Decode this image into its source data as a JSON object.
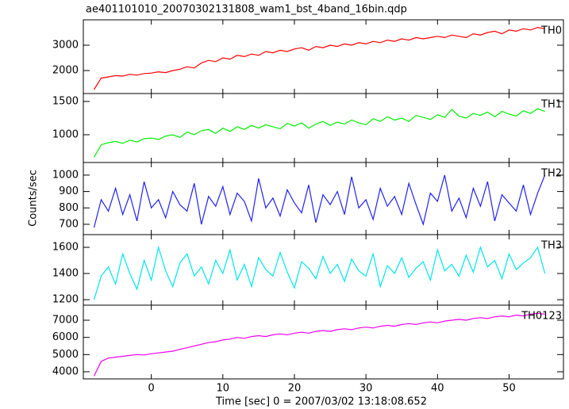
{
  "chart_data": {
    "type": "line",
    "title": "ae401101010_20070302131808_wam1_bst_4band_16bin.qdp",
    "xlabel": "Time [sec] 0 = 2007/03/02 13:18:08.652",
    "ylabel": "Counts/sec",
    "xlim": [
      -9.5,
      57.6
    ],
    "xticks": [
      0,
      10,
      20,
      30,
      40,
      50
    ],
    "x": [
      -8,
      -7,
      -6,
      -5,
      -4,
      -3,
      -2,
      -1,
      0,
      1,
      2,
      3,
      4,
      5,
      6,
      7,
      8,
      9,
      10,
      11,
      12,
      13,
      14,
      15,
      16,
      17,
      18,
      19,
      20,
      21,
      22,
      23,
      24,
      25,
      26,
      27,
      28,
      29,
      30,
      31,
      32,
      33,
      34,
      35,
      36,
      37,
      38,
      39,
      40,
      41,
      42,
      43,
      44,
      45,
      46,
      47,
      48,
      49,
      50,
      51,
      52,
      53,
      54,
      55
    ],
    "series": [
      {
        "name": "TH0",
        "color": "#ff0000",
        "ylim": [
          1094,
          4000
        ],
        "yticks": [
          2000,
          3000
        ],
        "values": [
          1250,
          1700,
          1750,
          1800,
          1780,
          1850,
          1820,
          1880,
          1900,
          1950,
          1920,
          2000,
          2050,
          2150,
          2100,
          2300,
          2400,
          2350,
          2500,
          2450,
          2600,
          2550,
          2650,
          2600,
          2750,
          2700,
          2800,
          2750,
          2850,
          2900,
          2800,
          2950,
          2900,
          3000,
          2950,
          3050,
          3000,
          3100,
          3050,
          3150,
          3100,
          3200,
          3150,
          3250,
          3200,
          3300,
          3250,
          3300,
          3350,
          3300,
          3400,
          3350,
          3300,
          3450,
          3400,
          3500,
          3550,
          3450,
          3600,
          3550,
          3650,
          3600,
          3700,
          3650
        ]
      },
      {
        "name": "TH1",
        "color": "#00ee00",
        "ylim": [
          583,
          1619
        ],
        "yticks": [
          1000,
          1500
        ],
        "values": [
          660,
          850,
          880,
          900,
          870,
          920,
          890,
          940,
          950,
          930,
          980,
          1000,
          960,
          1040,
          1000,
          1060,
          1080,
          1020,
          1100,
          1050,
          1120,
          1080,
          1140,
          1100,
          1150,
          1120,
          1090,
          1170,
          1130,
          1180,
          1100,
          1160,
          1200,
          1140,
          1190,
          1160,
          1220,
          1180,
          1150,
          1240,
          1200,
          1270,
          1220,
          1250,
          1200,
          1290,
          1260,
          1230,
          1300,
          1260,
          1380,
          1280,
          1250,
          1320,
          1290,
          1340,
          1270,
          1350,
          1310,
          1280,
          1360,
          1320,
          1390,
          1350
        ]
      },
      {
        "name": "TH2",
        "color": "#2222ee",
        "ylim": [
          637,
          1077
        ],
        "yticks": [
          700,
          800,
          900,
          1000
        ],
        "values": [
          680,
          850,
          780,
          920,
          760,
          880,
          720,
          960,
          800,
          850,
          740,
          900,
          820,
          780,
          950,
          700,
          870,
          810,
          930,
          760,
          890,
          840,
          720,
          980,
          800,
          860,
          750,
          910,
          830,
          770,
          940,
          710,
          880,
          820,
          900,
          760,
          990,
          800,
          850,
          730,
          920,
          810,
          870,
          760,
          950,
          820,
          700,
          890,
          840,
          1000,
          780,
          860,
          740,
          920,
          810,
          960,
          720,
          880,
          830,
          780,
          940,
          760,
          890,
          1000
        ]
      },
      {
        "name": "TH3",
        "color": "#00e5ee",
        "ylim": [
          1158,
          1697
        ],
        "yticks": [
          1200,
          1400,
          1600
        ],
        "values": [
          1200,
          1380,
          1450,
          1320,
          1550,
          1400,
          1280,
          1500,
          1350,
          1600,
          1420,
          1300,
          1480,
          1550,
          1380,
          1450,
          1320,
          1500,
          1400,
          1580,
          1350,
          1470,
          1300,
          1520,
          1430,
          1380,
          1560,
          1410,
          1290,
          1490,
          1440,
          1360,
          1530,
          1400,
          1470,
          1340,
          1510,
          1420,
          1380,
          1550,
          1300,
          1460,
          1400,
          1520,
          1370,
          1440,
          1490,
          1350,
          1580,
          1420,
          1470,
          1380,
          1540,
          1410,
          1600,
          1450,
          1500,
          1360,
          1550,
          1430,
          1480,
          1520,
          1600,
          1400
        ]
      },
      {
        "name": "TH0123",
        "color": "#ee00ee",
        "ylim": [
          3585,
          7877
        ],
        "yticks": [
          4000,
          5000,
          6000,
          7000
        ],
        "values": [
          3750,
          4600,
          4800,
          4850,
          4900,
          4950,
          5000,
          4980,
          5050,
          5100,
          5150,
          5200,
          5300,
          5400,
          5500,
          5600,
          5700,
          5750,
          5850,
          5900,
          6000,
          5950,
          6050,
          6100,
          6050,
          6150,
          6200,
          6150,
          6250,
          6300,
          6250,
          6350,
          6400,
          6350,
          6450,
          6500,
          6450,
          6550,
          6600,
          6550,
          6650,
          6700,
          6650,
          6750,
          6800,
          6750,
          6850,
          6900,
          6850,
          6950,
          7000,
          7050,
          7000,
          7100,
          7150,
          7100,
          7200,
          7250,
          7200,
          7300,
          7250,
          7350,
          7400,
          7350
        ]
      }
    ]
  }
}
